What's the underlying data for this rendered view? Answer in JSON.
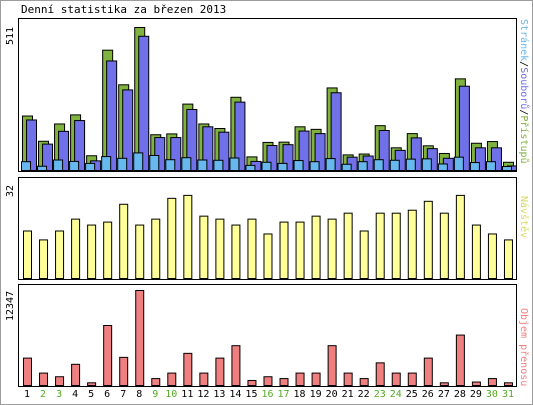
{
  "title": "Denní statistika za březen 2013",
  "colors": {
    "hits": "#7fb23f",
    "files": "#7070e8",
    "pages": "#66b8ee",
    "visits": "#ffff99",
    "kbytes": "#f08080",
    "weekend_label": "#55aa22",
    "weekday_label": "#000000",
    "border": "#000000"
  },
  "chart_data": [
    {
      "type": "bar",
      "panel": "hits-files-pages",
      "ymax_label": "511",
      "ylim": [
        0,
        511
      ],
      "legend": [
        {
          "name": "Stránek",
          "color": "#66b8ee"
        },
        {
          "name": "Souborů",
          "color": "#7070e8"
        },
        {
          "name": "Přístupů",
          "color": "#7fb23f"
        }
      ],
      "legend_separator": "/",
      "categories": [
        "1",
        "2",
        "3",
        "4",
        "5",
        "6",
        "7",
        "8",
        "9",
        "10",
        "11",
        "12",
        "13",
        "14",
        "15",
        "16",
        "17",
        "18",
        "19",
        "20",
        "21",
        "22",
        "23",
        "24",
        "25",
        "26",
        "27",
        "28",
        "29",
        "30",
        "31"
      ],
      "series": [
        {
          "name": "Přístupů",
          "values": [
            192,
            103,
            164,
            196,
            52,
            424,
            302,
            504,
            126,
            129,
            234,
            164,
            148,
            258,
            48,
            99,
            100,
            154,
            145,
            291,
            55,
            58,
            158,
            80,
            130,
            87,
            60,
            323,
            96,
            102,
            29
          ]
        },
        {
          "name": "Souborů",
          "values": [
            178,
            93,
            138,
            176,
            34,
            386,
            284,
            473,
            116,
            116,
            215,
            154,
            135,
            241,
            32,
            88,
            91,
            139,
            130,
            274,
            47,
            51,
            141,
            71,
            115,
            77,
            43,
            297,
            80,
            80,
            16
          ]
        },
        {
          "name": "Stránek",
          "values": [
            31,
            15,
            37,
            32,
            25,
            49,
            43,
            62,
            53,
            38,
            45,
            37,
            36,
            44,
            18,
            29,
            25,
            35,
            31,
            42,
            22,
            31,
            38,
            36,
            40,
            41,
            23,
            47,
            28,
            31,
            14
          ]
        }
      ]
    },
    {
      "type": "bar",
      "panel": "visits",
      "ymax_label": "32",
      "ylim": [
        0,
        32
      ],
      "legend": [
        {
          "name": "Návštěv",
          "color": "#ffff99"
        }
      ],
      "categories": [
        "1",
        "2",
        "3",
        "4",
        "5",
        "6",
        "7",
        "8",
        "9",
        "10",
        "11",
        "12",
        "13",
        "14",
        "15",
        "16",
        "17",
        "18",
        "19",
        "20",
        "21",
        "22",
        "23",
        "24",
        "25",
        "26",
        "27",
        "28",
        "29",
        "30",
        "31"
      ],
      "series": [
        {
          "name": "Návštěv",
          "values": [
            16,
            13,
            16,
            20,
            18,
            19,
            25,
            18,
            20,
            27,
            28,
            21,
            20,
            18,
            20,
            15,
            19,
            19,
            21,
            20,
            22,
            16,
            22,
            22,
            23,
            26,
            22,
            28,
            18,
            15,
            13
          ]
        }
      ]
    },
    {
      "type": "bar",
      "panel": "kbytes",
      "ymax_label": "12347",
      "ylim": [
        0,
        12347
      ],
      "legend": [
        {
          "name": "Objem přenosu",
          "color": "#f08080"
        }
      ],
      "categories": [
        "1",
        "2",
        "3",
        "4",
        "5",
        "6",
        "7",
        "8",
        "9",
        "10",
        "11",
        "12",
        "13",
        "14",
        "15",
        "16",
        "17",
        "18",
        "19",
        "20",
        "21",
        "22",
        "23",
        "24",
        "25",
        "26",
        "27",
        "28",
        "29",
        "30",
        "31"
      ],
      "series": [
        {
          "name": "Objem přenosu",
          "values": [
            3561,
            1614,
            1138,
            2754,
            350,
            7799,
            3657,
            12347,
            900,
            1614,
            4178,
            1614,
            3561,
            5175,
            655,
            1138,
            900,
            1614,
            1614,
            5175,
            1614,
            900,
            2943,
            1614,
            1614,
            3561,
            350,
            6555,
            450,
            900,
            350
          ]
        }
      ]
    }
  ],
  "x_labels": [
    {
      "text": "1",
      "weekend": false
    },
    {
      "text": "2",
      "weekend": true
    },
    {
      "text": "3",
      "weekend": true
    },
    {
      "text": "4",
      "weekend": false
    },
    {
      "text": "5",
      "weekend": false
    },
    {
      "text": "6",
      "weekend": false
    },
    {
      "text": "7",
      "weekend": false
    },
    {
      "text": "8",
      "weekend": false
    },
    {
      "text": "9",
      "weekend": true
    },
    {
      "text": "10",
      "weekend": true
    },
    {
      "text": "11",
      "weekend": false
    },
    {
      "text": "12",
      "weekend": false
    },
    {
      "text": "13",
      "weekend": false
    },
    {
      "text": "14",
      "weekend": false
    },
    {
      "text": "15",
      "weekend": false
    },
    {
      "text": "16",
      "weekend": true
    },
    {
      "text": "17",
      "weekend": true
    },
    {
      "text": "18",
      "weekend": false
    },
    {
      "text": "19",
      "weekend": false
    },
    {
      "text": "20",
      "weekend": false
    },
    {
      "text": "21",
      "weekend": false
    },
    {
      "text": "22",
      "weekend": false
    },
    {
      "text": "23",
      "weekend": true
    },
    {
      "text": "24",
      "weekend": true
    },
    {
      "text": "25",
      "weekend": false
    },
    {
      "text": "26",
      "weekend": false
    },
    {
      "text": "27",
      "weekend": false
    },
    {
      "text": "28",
      "weekend": false
    },
    {
      "text": "29",
      "weekend": false
    },
    {
      "text": "30",
      "weekend": true
    },
    {
      "text": "31",
      "weekend": true
    }
  ]
}
